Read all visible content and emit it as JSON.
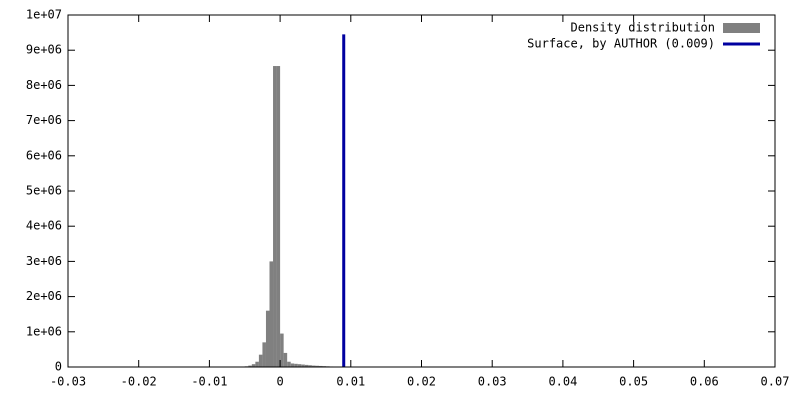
{
  "chart_data": {
    "type": "histogram",
    "bins": [
      -0.006,
      -0.0055,
      -0.005,
      -0.0045,
      -0.004,
      -0.0035,
      -0.003,
      -0.0025,
      -0.002,
      -0.0015,
      -0.001,
      -0.0005,
      0,
      0.0005,
      0.001,
      0.0015,
      0.002,
      0.0025,
      0.003,
      0.0035,
      0.004,
      0.0045,
      0.005,
      0.0055,
      0.006,
      0.0065,
      0.007,
      0.0075,
      0.008,
      0.0085
    ],
    "series": [
      {
        "name": "Density distribution",
        "color": "#808080",
        "values": [
          5000,
          10000,
          20000,
          40000,
          80000,
          150000,
          350000,
          700000,
          1600000,
          3000000,
          8550000,
          8550000,
          950000,
          400000,
          150000,
          100000,
          90000,
          80000,
          70000,
          60000,
          50000,
          40000,
          35000,
          30000,
          25000,
          20000,
          15000,
          10000,
          5000
        ]
      }
    ],
    "lines": [
      {
        "name": "Surface, by AUTHOR (0.009)",
        "color": "#0000a0",
        "x": [
          0.009,
          0.009
        ],
        "values": [
          0,
          9450000
        ]
      }
    ],
    "xlim": [
      -0.03,
      0.07
    ],
    "ylim": [
      0,
      10000000
    ],
    "xticks": [
      -0.03,
      -0.02,
      -0.01,
      0,
      0.01,
      0.02,
      0.03,
      0.04,
      0.05,
      0.06,
      0.07
    ],
    "yticks": [
      0,
      {
        "value": 1000000,
        "label": "1e+06"
      },
      {
        "value": 2000000,
        "label": "2e+06"
      },
      {
        "value": 3000000,
        "label": "3e+06"
      },
      {
        "value": 4000000,
        "label": "4e+06"
      },
      {
        "value": 5000000,
        "label": "5e+06"
      },
      {
        "value": 6000000,
        "label": "6e+06"
      },
      {
        "value": 7000000,
        "label": "7e+06"
      },
      {
        "value": 8000000,
        "label": "8e+06"
      },
      {
        "value": 9000000,
        "label": "9e+06"
      },
      {
        "value": 10000000,
        "label": "1e+07"
      }
    ],
    "legend": "top-right"
  }
}
